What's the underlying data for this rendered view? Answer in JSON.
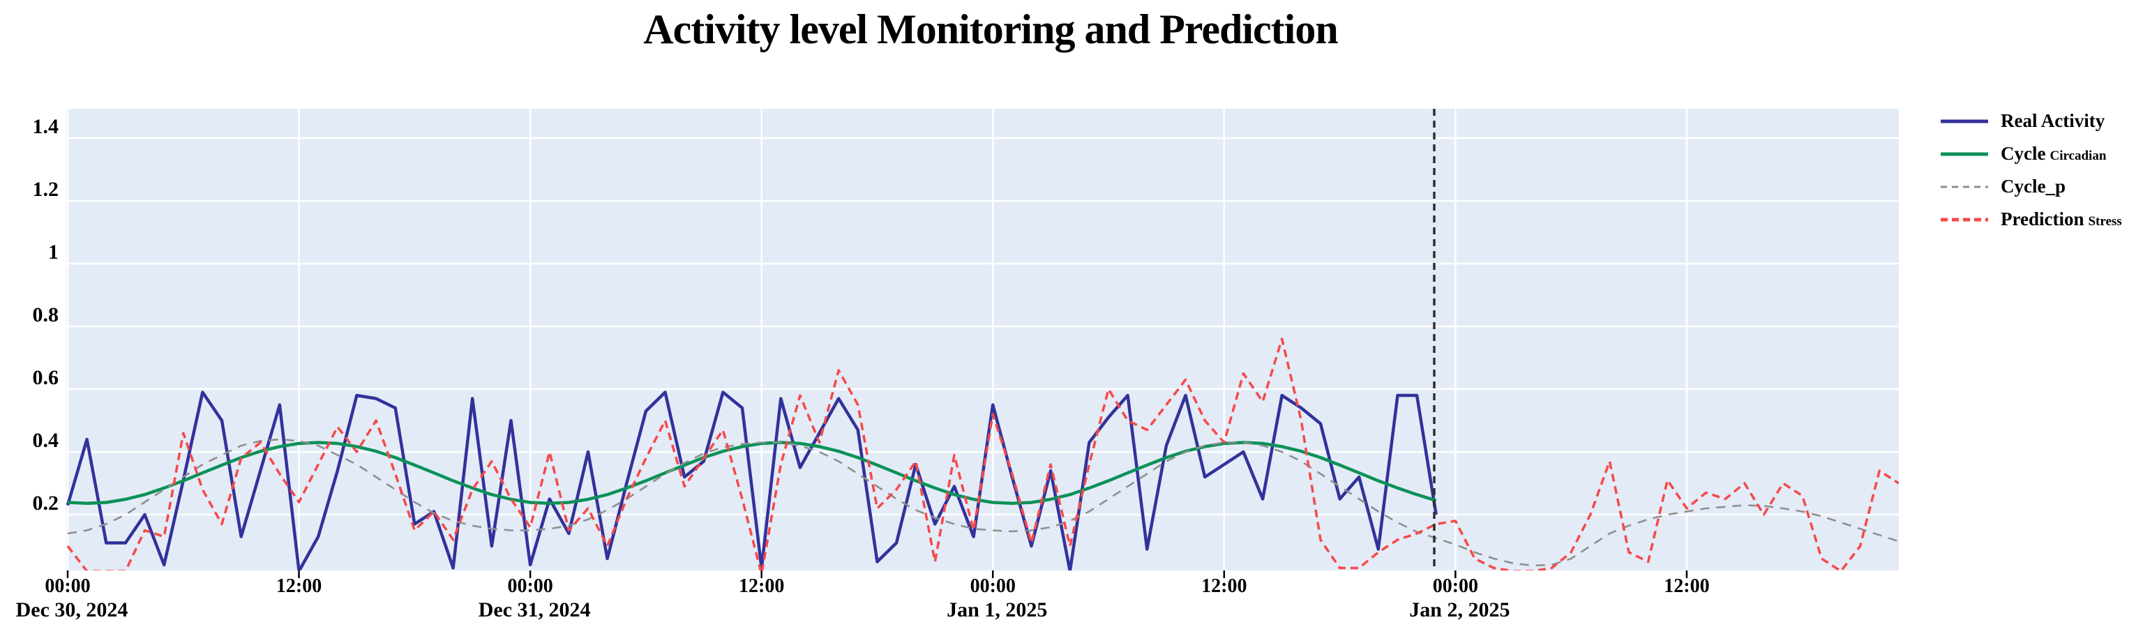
{
  "header": {
    "title": "Activity level Monitoring and Prediction"
  },
  "legend": {
    "items": [
      {
        "label_main": "Real Activity",
        "label_sub": ""
      },
      {
        "label_main": "Cycle",
        "label_sub": "Circadian"
      },
      {
        "label_main": "Cycle_p",
        "label_sub": ""
      },
      {
        "label_main": "Prediction",
        "label_sub": "Stress"
      }
    ]
  },
  "chart_data": {
    "type": "line",
    "title": "Activity level Monitoring and Prediction",
    "xlabel": "",
    "ylabel": "",
    "grid": true,
    "legend_position": "right",
    "plot_background": "#e3ebf7",
    "grid_color": "#ffffff",
    "x_unit": "hours since Dec 30, 2024 00:00",
    "xlim_hours": [
      0,
      95
    ],
    "ylim": [
      0.02,
      1.49
    ],
    "y_axis": {
      "ticks": [
        {
          "v": 0.2,
          "label": "0.2"
        },
        {
          "v": 0.4,
          "label": "0.4"
        },
        {
          "v": 0.6,
          "label": "0.6"
        },
        {
          "v": 0.8,
          "label": "0.8"
        },
        {
          "v": 1.0,
          "label": "1"
        },
        {
          "v": 1.2,
          "label": "1.2"
        },
        {
          "v": 1.4,
          "label": "1.4"
        }
      ]
    },
    "x_axis": {
      "ticks": [
        {
          "hour": 0,
          "time": "00:00",
          "date": "Dec 30, 2024"
        },
        {
          "hour": 12,
          "time": "12:00",
          "date": ""
        },
        {
          "hour": 24,
          "time": "00:00",
          "date": "Dec 31, 2024"
        },
        {
          "hour": 36,
          "time": "12:00",
          "date": ""
        },
        {
          "hour": 48,
          "time": "00:00",
          "date": "Jan 1, 2025"
        },
        {
          "hour": 60,
          "time": "12:00",
          "date": ""
        },
        {
          "hour": 72,
          "time": "00:00",
          "date": "Jan 2, 2025"
        },
        {
          "hour": 84,
          "time": "12:00",
          "date": ""
        }
      ]
    },
    "forecast_divider_hour": 70.9,
    "divider_color": "#2f2f2f",
    "series": [
      {
        "name": "Real Activity",
        "color": "#32329b",
        "style": "solid",
        "width": 4.5,
        "start_hour": 0,
        "step_hours": 1,
        "values": [
          0.23,
          0.44,
          0.11,
          0.11,
          0.2,
          0.04,
          0.31,
          0.59,
          0.5,
          0.13,
          0.34,
          0.55,
          0.02,
          0.13,
          0.34,
          0.58,
          0.57,
          0.54,
          0.17,
          0.21,
          0.03,
          0.57,
          0.1,
          0.5,
          0.04,
          0.25,
          0.14,
          0.4,
          0.06,
          0.3,
          0.53,
          0.59,
          0.32,
          0.37,
          0.59,
          0.54,
          0.03,
          0.57,
          0.35,
          0.46,
          0.57,
          0.47,
          0.05,
          0.11,
          0.36,
          0.17,
          0.29,
          0.13,
          0.55,
          0.32,
          0.1,
          0.34,
          0.02,
          0.43,
          0.51,
          0.58,
          0.09,
          0.42,
          0.58,
          0.32,
          0.36,
          0.4,
          0.25,
          0.58,
          0.54,
          0.49,
          0.25,
          0.32,
          0.09,
          0.58,
          0.58,
          0.2
        ]
      },
      {
        "name": "Cycle Circadian",
        "color": "#0c9158",
        "style": "solid",
        "width": 4.5,
        "start_hour": 0,
        "step_hours": 1,
        "values": [
          0.239,
          0.236,
          0.239,
          0.249,
          0.264,
          0.285,
          0.308,
          0.333,
          0.358,
          0.382,
          0.402,
          0.417,
          0.427,
          0.43,
          0.427,
          0.417,
          0.402,
          0.382,
          0.358,
          0.333,
          0.308,
          0.285,
          0.264,
          0.249,
          0.239,
          0.236,
          0.239,
          0.249,
          0.264,
          0.285,
          0.308,
          0.333,
          0.358,
          0.382,
          0.402,
          0.417,
          0.427,
          0.43,
          0.427,
          0.417,
          0.402,
          0.382,
          0.358,
          0.333,
          0.308,
          0.285,
          0.264,
          0.249,
          0.239,
          0.236,
          0.239,
          0.249,
          0.264,
          0.285,
          0.308,
          0.333,
          0.358,
          0.382,
          0.402,
          0.417,
          0.427,
          0.43,
          0.427,
          0.417,
          0.402,
          0.382,
          0.358,
          0.333,
          0.308,
          0.285,
          0.264,
          0.245
        ]
      },
      {
        "name": "Cycle_p",
        "color": "#8f8f8f",
        "style": "dashed",
        "width": 2.6,
        "dash": "13 10",
        "start_hour": 0,
        "step_hours": 1,
        "values": [
          0.14,
          0.15,
          0.17,
          0.2,
          0.24,
          0.28,
          0.32,
          0.36,
          0.39,
          0.42,
          0.435,
          0.44,
          0.435,
          0.42,
          0.39,
          0.36,
          0.32,
          0.28,
          0.24,
          0.205,
          0.18,
          0.165,
          0.155,
          0.15,
          0.15,
          0.155,
          0.165,
          0.185,
          0.215,
          0.25,
          0.29,
          0.33,
          0.365,
          0.395,
          0.415,
          0.425,
          0.43,
          0.43,
          0.42,
          0.4,
          0.37,
          0.33,
          0.29,
          0.25,
          0.215,
          0.19,
          0.17,
          0.155,
          0.15,
          0.147,
          0.15,
          0.16,
          0.18,
          0.21,
          0.25,
          0.29,
          0.33,
          0.37,
          0.4,
          0.42,
          0.43,
          0.43,
          0.42,
          0.4,
          0.37,
          0.33,
          0.29,
          0.25,
          0.21,
          0.175,
          0.145,
          0.125,
          0.105,
          0.08,
          0.06,
          0.045,
          0.038,
          0.04,
          0.06,
          0.1,
          0.14,
          0.165,
          0.185,
          0.2,
          0.21,
          0.22,
          0.225,
          0.23,
          0.228,
          0.22,
          0.21,
          0.195,
          0.175,
          0.155,
          0.135,
          0.115
        ]
      },
      {
        "name": "Prediction Stress",
        "color": "#f64949",
        "style": "dashed",
        "width": 3.5,
        "dash": "11 7",
        "start_hour": 0,
        "step_hours": 1,
        "values": [
          0.1,
          0.02,
          0.02,
          0.02,
          0.15,
          0.13,
          0.46,
          0.28,
          0.17,
          0.38,
          0.43,
          0.33,
          0.24,
          0.36,
          0.48,
          0.4,
          0.5,
          0.33,
          0.15,
          0.21,
          0.12,
          0.28,
          0.37,
          0.25,
          0.16,
          0.4,
          0.15,
          0.22,
          0.1,
          0.25,
          0.38,
          0.5,
          0.29,
          0.38,
          0.47,
          0.25,
          0.01,
          0.36,
          0.58,
          0.43,
          0.66,
          0.55,
          0.22,
          0.28,
          0.37,
          0.05,
          0.39,
          0.15,
          0.52,
          0.33,
          0.11,
          0.36,
          0.1,
          0.36,
          0.6,
          0.5,
          0.47,
          0.55,
          0.63,
          0.5,
          0.43,
          0.65,
          0.56,
          0.76,
          0.5,
          0.12,
          0.03,
          0.03,
          0.08,
          0.12,
          0.14,
          0.17,
          0.18,
          0.06,
          0.03,
          0.02,
          0.02,
          0.03,
          0.08,
          0.2,
          0.37,
          0.08,
          0.05,
          0.31,
          0.22,
          0.27,
          0.25,
          0.3,
          0.2,
          0.3,
          0.26,
          0.06,
          0.02,
          0.1,
          0.34,
          0.3
        ]
      }
    ]
  }
}
